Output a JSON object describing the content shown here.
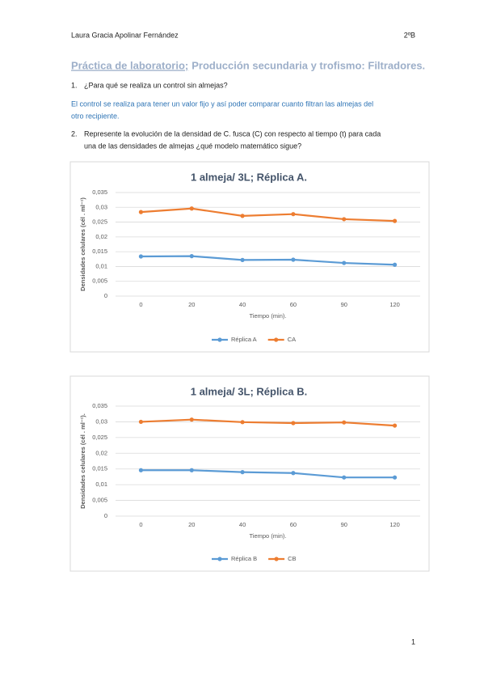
{
  "header": {
    "author": "Laura Gracia Apolinar Fernández",
    "group": "2ºB"
  },
  "title": {
    "underlined": "Práctica de laboratorio;",
    "rest": "Producción secundaria y trofismo: Filtradores."
  },
  "questions": [
    {
      "number": "1.",
      "lines": [
        "¿Para qué se realiza un control sin almejas?"
      ]
    },
    {
      "number": "2.",
      "lines": [
        "Represente la evolución de la densidad de C. fusca (C) con respecto al tiempo (t) para cada",
        "una de las densidades de almejas ¿qué modelo matemático sigue?"
      ]
    }
  ],
  "answer": {
    "lines": [
      "El control se realiza para tener un valor fijo y así poder comparar cuanto filtran las almejas del",
      "otro recipiente."
    ]
  },
  "page_number": "1",
  "chart_data": [
    {
      "type": "line",
      "title": "1 almeja/ 3L; Réplica A.",
      "x_label": "Tiempo (min).",
      "y_label": "Densidades celulares (cél . ml⁻¹)",
      "categories": [
        "0",
        "20",
        "40",
        "60",
        "90",
        "120"
      ],
      "series": [
        {
          "name": "Réplica A",
          "color": "#5b9bd5",
          "values": [
            0.0134,
            0.0135,
            0.0122,
            0.0123,
            0.0112,
            0.0106
          ]
        },
        {
          "name": "CA",
          "color": "#ed7d31",
          "values": [
            0.0284,
            0.0296,
            0.0271,
            0.0277,
            0.026,
            0.0254
          ]
        }
      ],
      "ylim": [
        0,
        0.035
      ],
      "yticks": [
        0,
        {
          "value": 0.005,
          "label": "0,005"
        },
        {
          "value": 0.01,
          "label": "0,01"
        },
        {
          "value": 0.015,
          "label": "0,015"
        },
        {
          "value": 0.02,
          "label": "0,02"
        },
        {
          "value": 0.025,
          "label": "0,025"
        },
        {
          "value": 0.03,
          "label": "0,03"
        },
        {
          "value": 0.035,
          "label": "0,035"
        }
      ],
      "grid": true,
      "legend": "bottom"
    },
    {
      "type": "line",
      "title": "1 almeja/ 3L; Réplica B.",
      "x_label": "Tiempo (min).",
      "y_label": "Densidades celulares (cél . ml⁻¹).",
      "categories": [
        "0",
        "20",
        "40",
        "60",
        "90",
        "120"
      ],
      "series": [
        {
          "name": "Réplica B",
          "color": "#5b9bd5",
          "values": [
            0.0146,
            0.0146,
            0.014,
            0.0137,
            0.0123,
            0.0123
          ]
        },
        {
          "name": "CB",
          "color": "#ed7d31",
          "values": [
            0.03,
            0.0307,
            0.0299,
            0.0296,
            0.0298,
            0.0288
          ]
        }
      ],
      "ylim": [
        0,
        0.035
      ],
      "yticks": [
        0,
        {
          "value": 0.005,
          "label": "0,005"
        },
        {
          "value": 0.01,
          "label": "0,01"
        },
        {
          "value": 0.015,
          "label": "0,015"
        },
        {
          "value": 0.02,
          "label": "0,02"
        },
        {
          "value": 0.025,
          "label": "0,025"
        },
        {
          "value": 0.03,
          "label": "0,03"
        },
        {
          "value": 0.035,
          "label": "0,035"
        }
      ],
      "grid": true,
      "legend": "bottom"
    }
  ]
}
